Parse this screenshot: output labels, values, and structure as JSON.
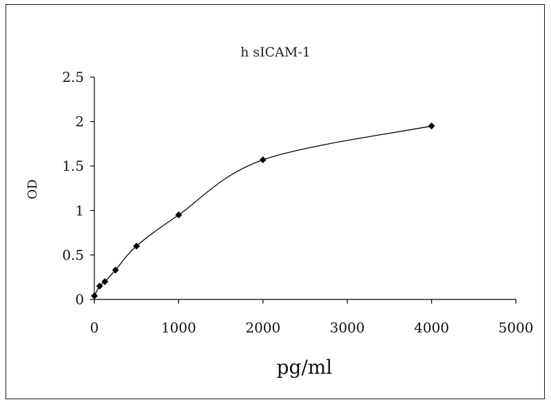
{
  "chart_data": {
    "type": "line",
    "title": "h sICAM-1",
    "xlabel": "pg/ml",
    "ylabel": "OD",
    "xlim": [
      0,
      5000
    ],
    "ylim": [
      0,
      2.5
    ],
    "x_ticks": [
      0,
      1000,
      2000,
      3000,
      4000,
      5000
    ],
    "y_ticks": [
      0,
      0.5,
      1,
      1.5,
      2,
      2.5
    ],
    "x_tick_labels": [
      "0",
      "1000",
      "2000",
      "3000",
      "4000",
      "5000"
    ],
    "y_tick_labels": [
      "0",
      "0.5",
      "1",
      "1.5",
      "2",
      "2.5"
    ],
    "grid": false,
    "legend": "none",
    "colors": {
      "line": "#000000",
      "marker": "#000000",
      "axis": "#000000",
      "frame": "#1a1a1a"
    },
    "series": [
      {
        "marker": "diamond",
        "smooth": true,
        "x": [
          0,
          62.5,
          125,
          250,
          500,
          1000,
          2000,
          4000
        ],
        "y": [
          0.04,
          0.15,
          0.2,
          0.33,
          0.6,
          0.95,
          1.57,
          1.95
        ]
      }
    ]
  }
}
